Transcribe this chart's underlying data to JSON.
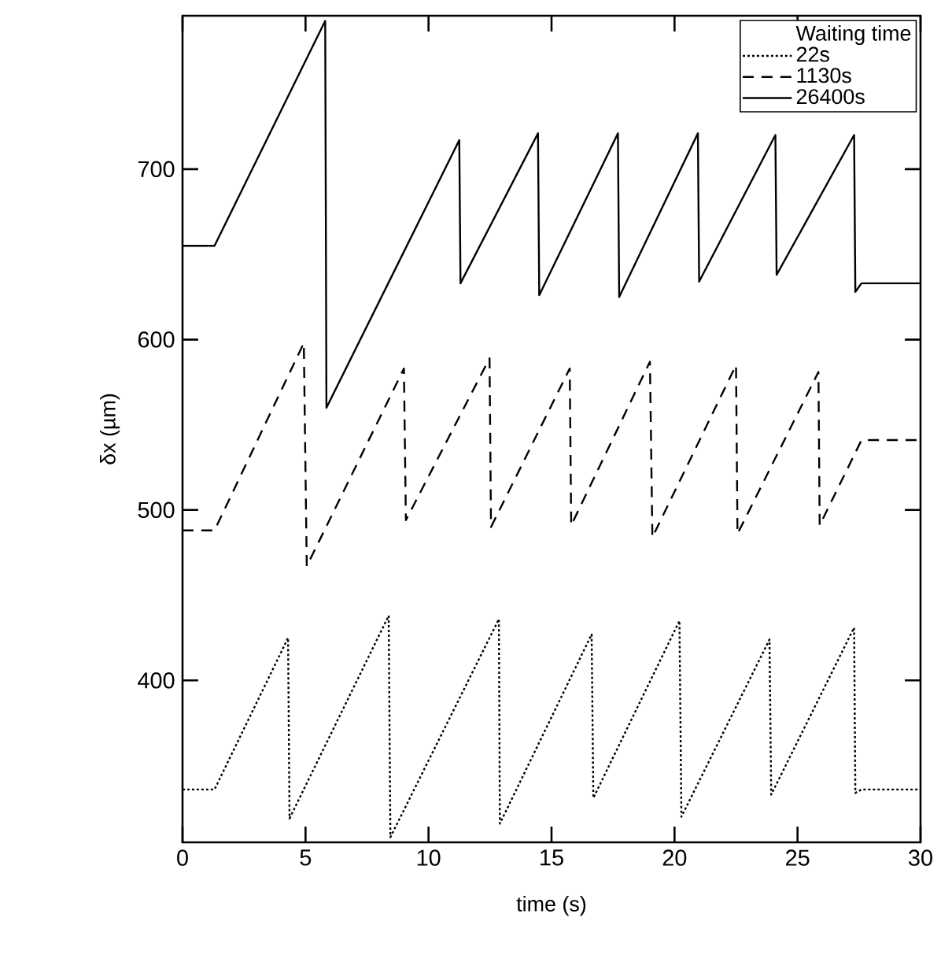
{
  "chart_data": {
    "type": "line",
    "xlabel": "time (s)",
    "ylabel": "δx (µm)",
    "legend_title": "Waiting time",
    "legend": "top right",
    "xlim": [
      0,
      30
    ],
    "xticks": [
      0,
      5,
      10,
      15,
      20,
      25,
      30
    ],
    "ylim": [
      305,
      790
    ],
    "yticks": [
      400,
      500,
      600,
      700
    ],
    "series": [
      {
        "name": "22s",
        "color": "#000000",
        "line_style": "dotted",
        "x": [
          0,
          1.3,
          4.29,
          4.35,
          8.38,
          8.45,
          12.86,
          12.9,
          16.63,
          16.7,
          20.2,
          20.28,
          23.86,
          23.93,
          27.3,
          27.35,
          27.6,
          30
        ],
        "values": [
          336,
          336,
          425,
          319,
          438,
          308,
          436,
          316,
          427,
          331,
          435,
          320,
          424,
          333,
          431,
          334,
          336,
          336
        ]
      },
      {
        "name": "1130s",
        "color": "#000000",
        "line_style": "dashed",
        "x": [
          0,
          1.3,
          4.93,
          5.05,
          9.0,
          9.08,
          12.48,
          12.54,
          15.74,
          15.8,
          19.0,
          19.1,
          22.5,
          22.56,
          25.85,
          25.9,
          27.6,
          30
        ],
        "values": [
          488,
          488,
          598,
          467,
          583,
          494,
          589,
          490,
          583,
          491,
          587,
          484,
          585,
          486,
          581,
          491,
          541,
          541
        ]
      },
      {
        "name": "26400s",
        "color": "#000000",
        "line_style": "solid",
        "x": [
          0,
          1.3,
          5.8,
          5.85,
          11.25,
          11.3,
          14.45,
          14.5,
          17.7,
          17.75,
          20.95,
          21.0,
          24.1,
          24.15,
          27.3,
          27.35,
          27.6,
          30
        ],
        "values": [
          655,
          655,
          787,
          560,
          717,
          633,
          721,
          626,
          721,
          625,
          721,
          634,
          720,
          638,
          720,
          628,
          633,
          633
        ]
      }
    ]
  }
}
